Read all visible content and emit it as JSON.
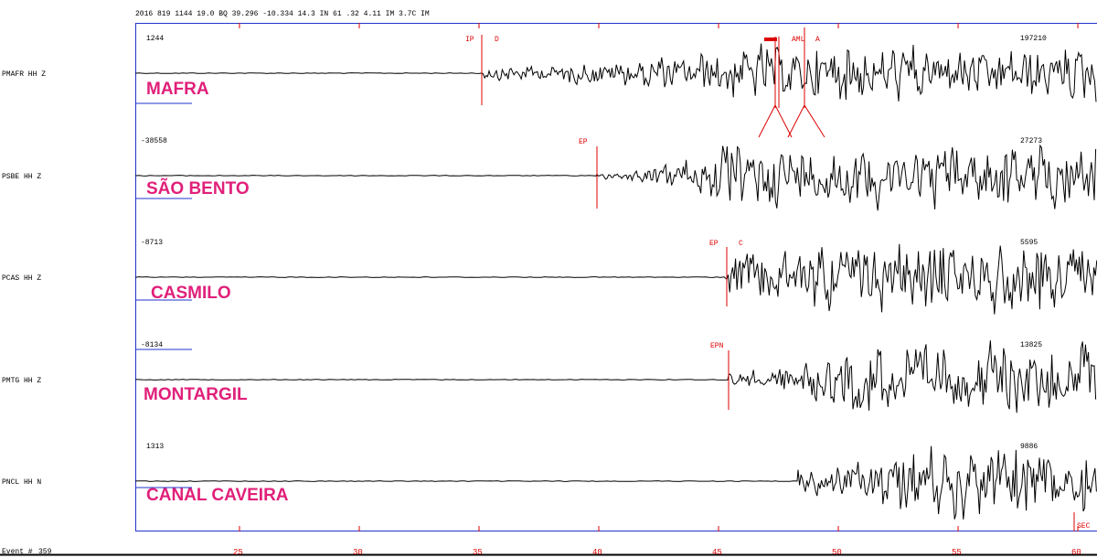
{
  "header": "2016  819 1144 19.0 BQ 39.296 -10.334 14.3   IN 61 .32 4.11 IM 3.7C IM",
  "traces": [
    {
      "channel": "PMAFR  HH Z",
      "station": "MAFRA",
      "min_label": 1244,
      "max_label": 197210,
      "picks": [
        "IP",
        "D",
        "AML",
        "A"
      ]
    },
    {
      "channel": "PSBE  HH Z",
      "station": "SÃO BENTO",
      "min_label": -38558,
      "max_label": 27273,
      "picks": [
        "EP"
      ]
    },
    {
      "channel": "PCAS  HH Z",
      "station": "CASMILO",
      "min_label": -8713,
      "max_label": 5595,
      "picks": [
        "EP",
        "C"
      ]
    },
    {
      "channel": "PMTG  HH Z",
      "station": "MONTARGIL",
      "min_label": -8134,
      "max_label": 13825,
      "picks": [
        "EPN"
      ]
    },
    {
      "channel": "PNCL  HH N",
      "station": "CANAL CAVEIRA",
      "min_label": 1313,
      "max_label": 9886,
      "picks": []
    }
  ],
  "time_axis": {
    "xlim": [
      20.65,
      60.8
    ],
    "ticks": [
      25,
      30,
      35,
      40,
      45,
      50,
      55,
      60
    ],
    "unit_label": "SEC"
  },
  "event": {
    "label": "Event #",
    "number": 359
  }
}
